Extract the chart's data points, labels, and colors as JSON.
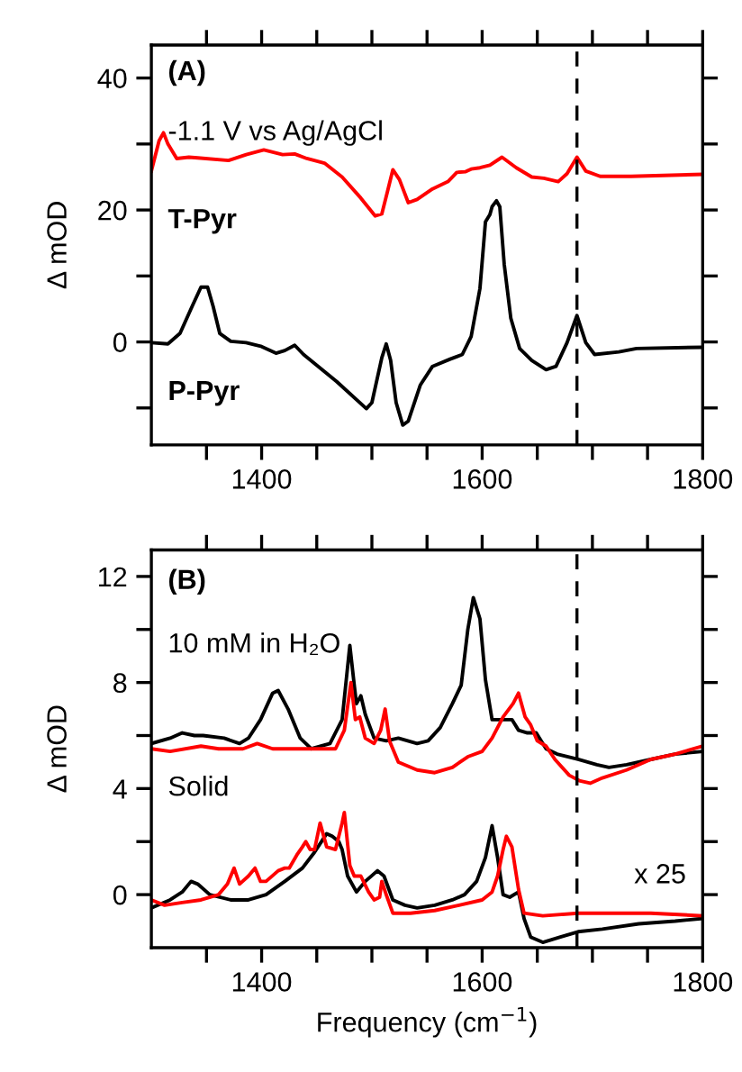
{
  "chart_data": [
    {
      "type": "line",
      "ylabel": "Δ mOD",
      "xlim": [
        1300,
        1800
      ],
      "ylim": [
        -15.6,
        45
      ],
      "xticks": [
        {
          "value": 1350,
          "label": null
        },
        1400,
        {
          "value": 1450,
          "label": null
        },
        {
          "value": 1500,
          "label": null
        },
        {
          "value": 1550,
          "label": null
        },
        1600,
        {
          "value": 1650,
          "label": null
        },
        {
          "value": 1700,
          "label": null
        },
        {
          "value": 1750,
          "label": null
        },
        1800
      ],
      "yticks": [
        {
          "value": -10,
          "label": null
        },
        0,
        {
          "value": 10,
          "label": null
        },
        20,
        {
          "value": 30,
          "label": null
        },
        40
      ],
      "annotations": [
        "(A)",
        "-1.1 V vs Ag/AgCl"
      ],
      "ref_lines": [
        {
          "axis": "x",
          "value": 1686,
          "line_style": "dashed",
          "color": "#000000"
        }
      ],
      "series": [
        {
          "name": "T-Pyr",
          "color": "#ff0000",
          "x": [
            1300,
            1307,
            1311,
            1315,
            1323,
            1334,
            1342,
            1370,
            1386,
            1402,
            1419,
            1430,
            1441,
            1457,
            1473,
            1490,
            1503,
            1509,
            1514,
            1519,
            1525,
            1533,
            1541,
            1555,
            1569,
            1577,
            1585,
            1590,
            1598,
            1607,
            1618,
            1631,
            1645,
            1656,
            1669,
            1677,
            1686,
            1694,
            1707,
            1735,
            1800
          ],
          "values": [
            25.9,
            30.5,
            31.7,
            30,
            27.8,
            28.0,
            27.9,
            27.5,
            28.4,
            29.1,
            28.4,
            28.5,
            27.8,
            27.1,
            25.0,
            21.8,
            19.1,
            19.4,
            22.7,
            26.1,
            24.6,
            21.1,
            21.6,
            23.2,
            24.3,
            25.7,
            25.8,
            26.2,
            26.4,
            26.8,
            28.0,
            26.4,
            25.0,
            24.8,
            24.3,
            25.5,
            28.0,
            25.9,
            25.1,
            25.1,
            25.4
          ]
        },
        {
          "name": "P-Pyr",
          "color": "#000000",
          "x": [
            1300,
            1315,
            1326,
            1337,
            1345,
            1351,
            1356,
            1362,
            1372,
            1386,
            1400,
            1413,
            1421,
            1430,
            1438,
            1468,
            1495,
            1500,
            1509,
            1513,
            1517,
            1522,
            1528,
            1533,
            1544,
            1555,
            1571,
            1582,
            1590,
            1598,
            1603,
            1607,
            1609,
            1613,
            1616,
            1620,
            1626,
            1634,
            1645,
            1658,
            1667,
            1677,
            1686,
            1694,
            1702,
            1724,
            1740,
            1800
          ],
          "values": [
            -0.1,
            -0.3,
            1.3,
            5.4,
            8.3,
            8.3,
            5.4,
            1.3,
            0.1,
            -0.1,
            -0.7,
            -1.7,
            -1.3,
            -0.5,
            -1.9,
            -6.0,
            -10.1,
            -9.2,
            -2.4,
            -0.3,
            -2.8,
            -9.2,
            -12.6,
            -12.0,
            -6.5,
            -3.7,
            -2.6,
            -1.9,
            0.8,
            8.1,
            18.2,
            19.3,
            20.5,
            21.4,
            20.5,
            11.8,
            3.6,
            -1.0,
            -2.8,
            -4.2,
            -3.7,
            -0.1,
            4.0,
            -0.1,
            -1.9,
            -1.5,
            -1.0,
            -0.8
          ]
        }
      ]
    },
    {
      "type": "line",
      "xlabel": "Frequency (cm$^{−1}$)",
      "ylabel": "Δ mOD",
      "xlim": [
        1300,
        1800
      ],
      "ylim": [
        -2,
        13
      ],
      "xticks": [
        {
          "value": 1350,
          "label": null
        },
        1400,
        {
          "value": 1450,
          "label": null
        },
        {
          "value": 1500,
          "label": null
        },
        {
          "value": 1550,
          "label": null
        },
        1600,
        {
          "value": 1650,
          "label": null
        },
        {
          "value": 1700,
          "label": null
        },
        {
          "value": 1750,
          "label": null
        },
        1800
      ],
      "yticks": [
        0,
        {
          "value": 2,
          "label": null
        },
        4,
        {
          "value": 6,
          "label": null
        },
        8,
        {
          "value": 10,
          "label": null
        },
        12
      ],
      "annotations": [
        "(B)",
        "10 mM in H₂O",
        "Solid",
        "x 25"
      ],
      "ref_lines": [
        {
          "axis": "x",
          "value": 1686,
          "line_style": "dashed",
          "color": "#000000"
        }
      ],
      "series": [
        {
          "color": "#000000",
          "x": [
            1300,
            1317,
            1328,
            1339,
            1347,
            1366,
            1380,
            1388,
            1399,
            1410,
            1415,
            1424,
            1435,
            1445,
            1462,
            1473,
            1480,
            1484,
            1486,
            1490,
            1494,
            1502,
            1513,
            1524,
            1541,
            1551,
            1562,
            1573,
            1581,
            1587,
            1592,
            1598,
            1603,
            1609,
            1617,
            1627,
            1633,
            1641,
            1649,
            1658,
            1668,
            1687,
            1704,
            1715,
            1731,
            1753,
            1775,
            1800
          ],
          "values": [
            5.7,
            5.9,
            6.1,
            6.0,
            6.0,
            5.9,
            5.7,
            5.9,
            6.6,
            7.6,
            7.7,
            7.0,
            5.9,
            5.5,
            5.7,
            6.6,
            9.4,
            7.9,
            7.2,
            7.5,
            6.8,
            5.9,
            5.8,
            5.9,
            5.7,
            5.8,
            6.3,
            7.2,
            7.9,
            10.0,
            11.2,
            10.4,
            8.1,
            6.6,
            6.6,
            6.6,
            6.2,
            6.1,
            6.1,
            5.5,
            5.3,
            5.1,
            4.9,
            4.8,
            4.9,
            5.1,
            5.3,
            5.4
          ]
        },
        {
          "color": "#ff0000",
          "x": [
            1300,
            1317,
            1345,
            1361,
            1383,
            1396,
            1410,
            1426,
            1453,
            1467,
            1475,
            1481,
            1485,
            1489,
            1494,
            1502,
            1508,
            1512,
            1516,
            1524,
            1541,
            1557,
            1573,
            1587,
            1600,
            1609,
            1619,
            1628,
            1633,
            1639,
            1644,
            1650,
            1658,
            1666,
            1679,
            1688,
            1698,
            1709,
            1731,
            1753,
            1775,
            1800
          ],
          "values": [
            5.5,
            5.4,
            5.6,
            5.5,
            5.5,
            5.7,
            5.5,
            5.5,
            5.5,
            5.5,
            6.2,
            8.0,
            6.6,
            6.7,
            5.9,
            5.7,
            6.2,
            7.0,
            5.8,
            5.0,
            4.7,
            4.6,
            4.8,
            5.2,
            5.4,
            5.9,
            6.7,
            7.2,
            7.6,
            6.7,
            6.4,
            5.8,
            5.6,
            5.1,
            4.5,
            4.3,
            4.2,
            4.4,
            4.7,
            5.1,
            5.3,
            5.6
          ]
        },
        {
          "color": "#000000",
          "x": [
            1300,
            1317,
            1328,
            1336,
            1342,
            1353,
            1372,
            1388,
            1404,
            1421,
            1437,
            1448,
            1459,
            1464,
            1470,
            1473,
            1478,
            1486,
            1494,
            1505,
            1511,
            1519,
            1530,
            1541,
            1557,
            1573,
            1584,
            1595,
            1603,
            1609,
            1614,
            1619,
            1625,
            1633,
            1638,
            1644,
            1655,
            1671,
            1687,
            1709,
            1742,
            1775,
            1800
          ],
          "values": [
            -0.5,
            -0.2,
            0.1,
            0.5,
            0.4,
            0.0,
            -0.2,
            -0.2,
            0.0,
            0.5,
            1.0,
            1.6,
            2.3,
            2.2,
            2.0,
            1.7,
            0.7,
            0.1,
            0.5,
            0.9,
            0.7,
            -0.2,
            -0.4,
            -0.5,
            -0.4,
            -0.2,
            0.0,
            0.5,
            1.4,
            2.6,
            1.4,
            0.0,
            -0.1,
            0.1,
            -0.9,
            -1.6,
            -1.8,
            -1.6,
            -1.4,
            -1.3,
            -1.1,
            -1.0,
            -0.9
          ]
        },
        {
          "color": "#ff0000",
          "x": [
            1300,
            1312,
            1328,
            1345,
            1361,
            1369,
            1375,
            1380,
            1388,
            1394,
            1399,
            1404,
            1415,
            1421,
            1425,
            1432,
            1437,
            1440,
            1444,
            1448,
            1453,
            1459,
            1467,
            1473,
            1475,
            1480,
            1484,
            1490,
            1497,
            1502,
            1507,
            1509,
            1513,
            1519,
            1535,
            1557,
            1579,
            1600,
            1609,
            1614,
            1619,
            1622,
            1627,
            1633,
            1638,
            1655,
            1687,
            1709,
            1753,
            1800
          ],
          "values": [
            -0.2,
            -0.4,
            -0.3,
            -0.2,
            0.0,
            0.4,
            1.0,
            0.4,
            0.7,
            1.0,
            0.5,
            0.5,
            0.9,
            1.0,
            1.0,
            1.5,
            1.8,
            2.0,
            1.7,
            1.7,
            2.7,
            1.8,
            1.7,
            2.7,
            3.1,
            1.1,
            0.7,
            0.7,
            0.1,
            -0.2,
            -0.1,
            0.5,
            0.0,
            -0.7,
            -0.7,
            -0.6,
            -0.4,
            -0.2,
            0.1,
            0.7,
            1.7,
            2.2,
            1.8,
            0.2,
            -0.7,
            -0.8,
            -0.7,
            -0.7,
            -0.7,
            -0.8
          ]
        }
      ]
    }
  ]
}
